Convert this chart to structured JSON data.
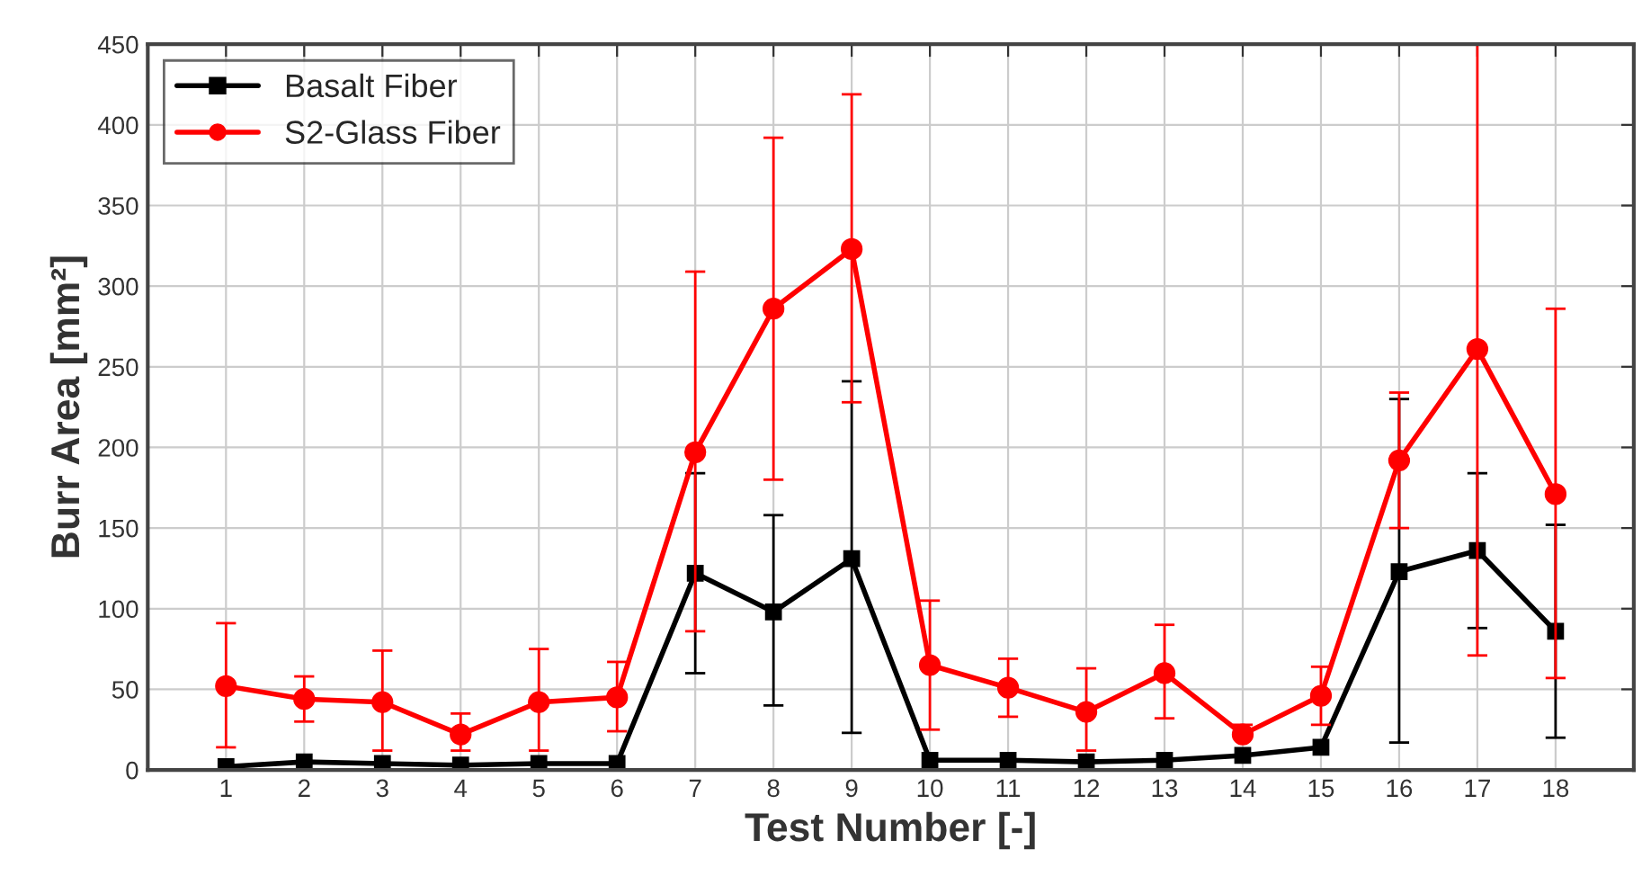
{
  "chart_data": {
    "type": "line",
    "xlabel": "Test Number [-]",
    "ylabel": "Burr Area [mm²]",
    "x": [
      1,
      2,
      3,
      4,
      5,
      6,
      7,
      8,
      9,
      10,
      11,
      12,
      13,
      14,
      15,
      16,
      17,
      18
    ],
    "xlim": [
      0,
      19
    ],
    "xticks": [
      1,
      2,
      3,
      4,
      5,
      6,
      7,
      8,
      9,
      10,
      11,
      12,
      13,
      14,
      15,
      16,
      17,
      18
    ],
    "ylim": [
      0,
      450
    ],
    "yticks": [
      0,
      50,
      100,
      150,
      200,
      250,
      300,
      350,
      400,
      450
    ],
    "grid": true,
    "legend": "top left",
    "line_style": "solid",
    "series": [
      {
        "name": "Basalt Fiber",
        "color": "#000000",
        "marker": "square",
        "values": [
          2,
          5,
          4,
          3,
          4,
          4,
          122,
          98,
          131,
          6,
          6,
          5,
          6,
          9,
          14,
          123,
          136,
          86
        ],
        "errors": [
          null,
          null,
          null,
          null,
          null,
          null,
          [
            60,
            184
          ],
          [
            40,
            158
          ],
          [
            23,
            241
          ],
          null,
          null,
          null,
          null,
          null,
          null,
          [
            17,
            230
          ],
          [
            88,
            184
          ],
          [
            20,
            152
          ]
        ]
      },
      {
        "name": "S2-Glass Fiber",
        "color": "#ff0000",
        "marker": "circle",
        "values": [
          52,
          44,
          42,
          22,
          42,
          45,
          197,
          286,
          323,
          65,
          51,
          36,
          60,
          22,
          46,
          192,
          261,
          171
        ],
        "errors": [
          [
            14,
            91
          ],
          [
            30,
            58
          ],
          [
            12,
            74
          ],
          [
            12,
            35
          ],
          [
            12,
            75
          ],
          [
            24,
            67
          ],
          [
            86,
            309
          ],
          [
            180,
            392
          ],
          [
            228,
            419
          ],
          [
            25,
            105
          ],
          [
            33,
            69
          ],
          [
            12,
            63
          ],
          [
            32,
            90
          ],
          [
            20,
            28
          ],
          [
            28,
            64
          ],
          [
            150,
            234
          ],
          [
            71,
            451
          ],
          [
            57,
            286
          ]
        ]
      }
    ]
  }
}
